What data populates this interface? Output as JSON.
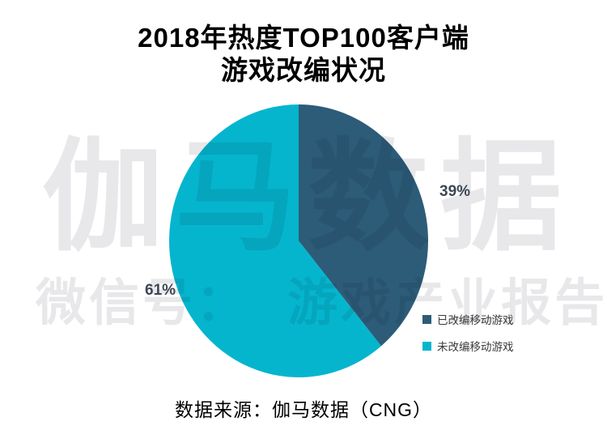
{
  "title": {
    "line1": "2018年热度TOP100客户端",
    "line2": "游戏改编状况"
  },
  "watermark": {
    "line1": "伽马数据",
    "line2": "微信号： 游戏产业报告"
  },
  "chart_data": {
    "type": "pie",
    "title": "2018年热度TOP100客户端游戏改编状况",
    "slices": [
      {
        "label": "已改编移动游戏",
        "value": 39,
        "pct_label": "39%",
        "color": "#2d5c78"
      },
      {
        "label": "未改编移动游戏",
        "value": 61,
        "pct_label": "61%",
        "color": "#05b5ce"
      }
    ],
    "start_angle_deg": 0,
    "direction": "clockwise",
    "legend_position": "right",
    "data_labels_outside": true
  },
  "caption": "数据来源：伽马数据（CNG）",
  "colors": {
    "pct_label_text": "#3d4754",
    "legend_text": "#3a3a3a",
    "watermark": "#e8e8eb",
    "title_text": "#000000"
  }
}
